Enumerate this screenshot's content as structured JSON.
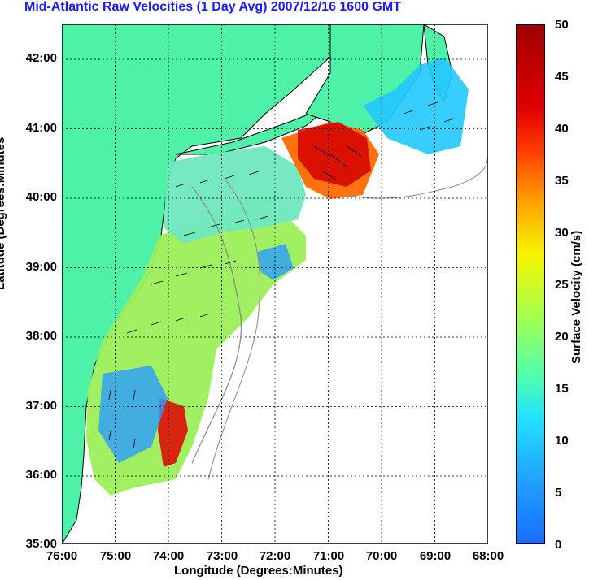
{
  "title": "Mid-Atlantic Raw Velocities (1 Day Avg) 2007/12/16 1600 GMT",
  "axes": {
    "xlabel": "Longitude (Degrees:Minutes)",
    "ylabel": "Latitude (Degrees:Minutes",
    "xticks": [
      "76:00",
      "75:00",
      "74:00",
      "73:00",
      "72:00",
      "71:00",
      "70:00",
      "69:00",
      "68:00"
    ],
    "yticks": [
      "42:00",
      "41:00",
      "40:00",
      "39:00",
      "38:00",
      "37:00",
      "36:00",
      "35:00"
    ]
  },
  "colorbar": {
    "label": "Surface Velocity (cm/s)",
    "ticks": [
      "50",
      "45",
      "40",
      "35",
      "30",
      "25",
      "20",
      "15",
      "10",
      "5",
      "0"
    ],
    "range": [
      0,
      50
    ],
    "colormap": "jet"
  },
  "colors": {
    "title": "#1a1aff",
    "land": "#4df2a8",
    "coast_outline": "#000000",
    "bathymetry": "#888888",
    "grid": "#000000"
  }
}
